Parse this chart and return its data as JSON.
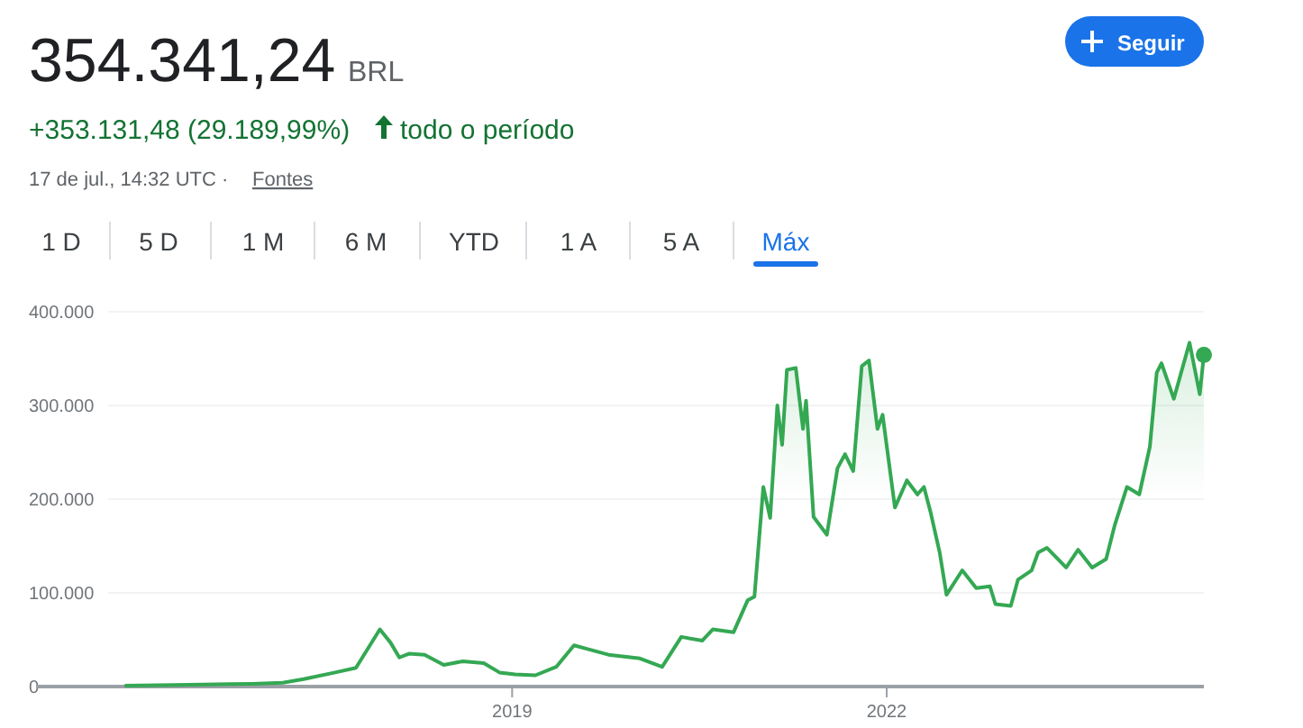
{
  "chart_data": {
    "type": "area",
    "title": "354.341,24",
    "annotations": [
      "BRL",
      "+353.131,48 (29.189,99%)",
      "todo o período",
      "17 de jul., 14:32 UTC ·",
      "Fontes",
      "1 D",
      "5 D",
      "1 M",
      "6 M",
      "YTD",
      "1 A",
      "5 A",
      "Máx",
      "Seguir"
    ],
    "xlim": [
      "2015-03-10",
      "2024-07-17"
    ],
    "xticks": [
      {
        "value": "2019-01-01",
        "label": "2019"
      },
      {
        "value": "2022-01-01",
        "label": "2022"
      }
    ],
    "ylim": [
      0,
      400000
    ],
    "yticks": [
      0,
      {
        "value": 100000,
        "label": "100.000"
      },
      {
        "value": 200000,
        "label": "200.000"
      },
      {
        "value": 300000,
        "label": "300.000"
      },
      {
        "value": 400000,
        "label": "400.000"
      }
    ],
    "grid": "y",
    "series": [
      {
        "color": "#34a853",
        "x": [
          "2015-11-28",
          "2016-06-01",
          "2016-12-01",
          "2017-03-01",
          "2017-05-01",
          "2017-08-01",
          "2017-10-01",
          "2017-12-10",
          "2018-01-10",
          "2018-02-05",
          "2018-03-05",
          "2018-04-20",
          "2018-06-15",
          "2018-08-10",
          "2018-10-10",
          "2018-11-25",
          "2019-01-10",
          "2019-03-10",
          "2019-05-10",
          "2019-07-01",
          "2019-08-10",
          "2019-10-10",
          "2020-01-10",
          "2020-03-15",
          "2020-05-10",
          "2020-07-10",
          "2020-08-10",
          "2020-10-10",
          "2020-11-20",
          "2020-12-10",
          "2021-01-05",
          "2021-01-25",
          "2021-02-15",
          "2021-03-01",
          "2021-03-15",
          "2021-04-10",
          "2021-05-01",
          "2021-05-10",
          "2021-06-01",
          "2021-07-10",
          "2021-08-10",
          "2021-09-01",
          "2021-09-25",
          "2021-10-20",
          "2021-11-10",
          "2021-12-05",
          "2021-12-20",
          "2022-01-25",
          "2022-03-01",
          "2022-04-01",
          "2022-04-20",
          "2022-05-10",
          "2022-06-05",
          "2022-06-25",
          "2022-08-10",
          "2022-09-20",
          "2022-10-30",
          "2022-11-15",
          "2022-12-30",
          "2023-01-20",
          "2023-03-01",
          "2023-03-20",
          "2023-04-15",
          "2023-06-10",
          "2023-07-15",
          "2023-08-25",
          "2023-10-05",
          "2023-10-30",
          "2023-12-05",
          "2024-01-10",
          "2024-02-10",
          "2024-03-01",
          "2024-03-15",
          "2024-04-20",
          "2024-06-05",
          "2024-07-05",
          "2024-07-17"
        ],
        "values": [
          1000,
          2000,
          3000,
          4000,
          8000,
          15000,
          20000,
          61000,
          47000,
          31000,
          35000,
          34000,
          23000,
          27000,
          25000,
          15000,
          13000,
          12000,
          21000,
          44000,
          40000,
          34000,
          30000,
          21000,
          53000,
          49000,
          61000,
          58000,
          92000,
          96000,
          213000,
          180000,
          300000,
          258000,
          338000,
          340000,
          275000,
          305000,
          181000,
          162000,
          233000,
          248000,
          230000,
          342000,
          348000,
          275000,
          290000,
          191000,
          220000,
          205000,
          213000,
          185000,
          143000,
          98000,
          124000,
          105000,
          107000,
          88000,
          86000,
          114000,
          124000,
          143000,
          148000,
          127000,
          146000,
          127000,
          136000,
          172000,
          213000,
          205000,
          256000,
          335000,
          345000,
          307000,
          367000,
          312000,
          354000
        ]
      },
      {
        "type": "scatter",
        "color": "#34a853",
        "marker": "circle",
        "x": [
          "2024-07-17"
        ],
        "values": [
          354000
        ]
      }
    ]
  }
}
